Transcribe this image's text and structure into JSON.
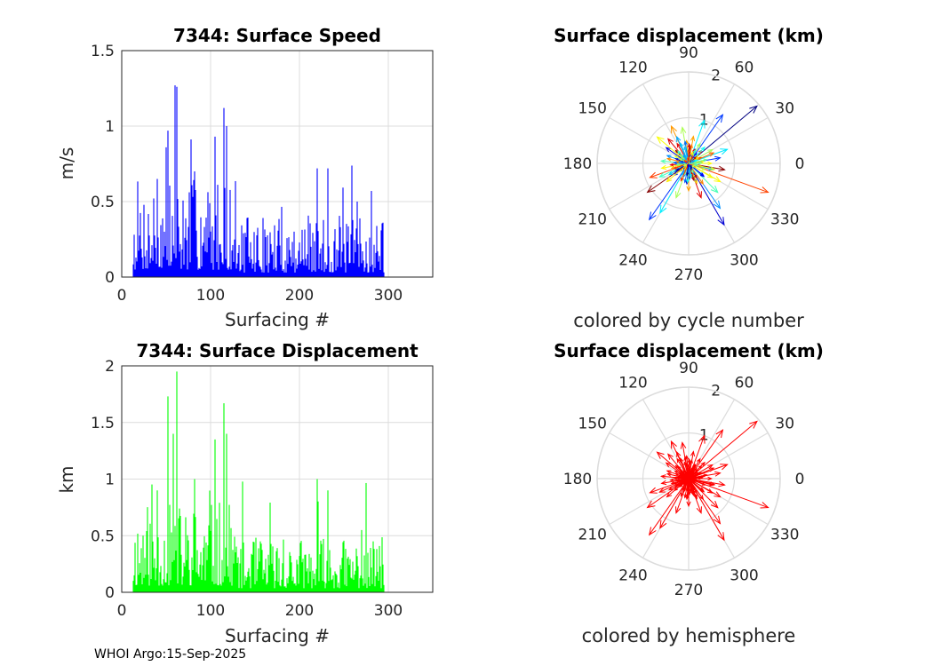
{
  "figure": {
    "footer": "WHOI Argo:15-Sep-2025",
    "colors": {
      "speed": "#0000ff",
      "displacement": "#00ff00",
      "hemisphere": "#ff0000",
      "grid": "#dcdcdc",
      "axis": "#262626"
    }
  },
  "chart_data": [
    {
      "type": "bar",
      "title": "7344: Surface Speed",
      "xlabel": "Surfacing #",
      "ylabel": "m/s",
      "xlim": [
        0,
        350
      ],
      "ylim": [
        0,
        1.5
      ],
      "xticks": [
        0,
        100,
        200,
        300
      ],
      "yticks": [
        0,
        0.5,
        1,
        1.5
      ],
      "grid": true,
      "x_range": [
        13,
        295
      ],
      "highlights": [
        [
          60,
          1.27
        ],
        [
          62,
          1.26
        ],
        [
          115,
          1.12
        ],
        [
          52,
          0.97
        ],
        [
          105,
          0.93
        ],
        [
          118,
          1.0
        ],
        [
          82,
          0.7
        ],
        [
          220,
          0.72
        ],
        [
          232,
          0.72
        ],
        [
          265,
          0.5
        ],
        [
          40,
          0.65
        ]
      ],
      "baseline_level": 0.25,
      "values_note": "dense per-surfacing bars, approx values estimated from image"
    },
    {
      "type": "bar",
      "title": "7344: Surface Displacement",
      "xlabel": "Surfacing #",
      "ylabel": "km",
      "xlim": [
        0,
        350
      ],
      "ylim": [
        0,
        2
      ],
      "xticks": [
        0,
        100,
        200,
        300
      ],
      "yticks": [
        0,
        0.5,
        1,
        1.5,
        2
      ],
      "grid": true,
      "x_range": [
        13,
        295
      ],
      "highlights": [
        [
          62,
          1.95
        ],
        [
          52,
          1.73
        ],
        [
          115,
          1.67
        ],
        [
          105,
          1.35
        ],
        [
          118,
          1.4
        ],
        [
          58,
          1.4
        ],
        [
          82,
          1.0
        ],
        [
          220,
          1.0
        ],
        [
          232,
          0.9
        ],
        [
          40,
          0.9
        ],
        [
          270,
          0.55
        ]
      ],
      "baseline_level": 0.3,
      "values_note": "dense per-surfacing bars, approx values estimated from image"
    },
    {
      "type": "polar-compass",
      "title": "Surface displacement (km)",
      "caption": "colored by cycle number",
      "rmax": 2,
      "rticks": [
        1,
        2
      ],
      "angle_ticks": [
        0,
        30,
        60,
        90,
        120,
        150,
        180,
        210,
        240,
        270,
        300,
        330
      ],
      "coloring": "cycle",
      "arrows": [
        [
          40,
          1.95
        ],
        [
          55,
          1.3
        ],
        [
          70,
          1.0
        ],
        [
          100,
          0.8
        ],
        [
          115,
          0.9
        ],
        [
          130,
          0.7
        ],
        [
          145,
          0.6
        ],
        [
          160,
          0.5
        ],
        [
          175,
          0.6
        ],
        [
          190,
          0.6
        ],
        [
          200,
          0.9
        ],
        [
          215,
          1.1
        ],
        [
          235,
          1.5
        ],
        [
          240,
          1.25
        ],
        [
          250,
          0.8
        ],
        [
          270,
          0.6
        ],
        [
          290,
          0.8
        ],
        [
          300,
          1.55
        ],
        [
          305,
          1.2
        ],
        [
          315,
          0.9
        ],
        [
          330,
          0.8
        ],
        [
          340,
          1.85
        ],
        [
          350,
          0.8
        ],
        [
          10,
          0.7
        ],
        [
          20,
          0.9
        ],
        [
          30,
          0.6
        ],
        [
          80,
          0.6
        ],
        [
          120,
          0.5
        ],
        [
          160,
          0.3
        ],
        [
          250,
          0.3
        ],
        [
          285,
          0.35
        ],
        [
          0,
          0.5
        ],
        [
          45,
          0.4
        ],
        [
          135,
          0.4
        ],
        [
          220,
          0.4
        ],
        [
          320,
          0.4
        ],
        [
          60,
          0.5
        ],
        [
          95,
          0.5
        ],
        [
          185,
          0.4
        ],
        [
          265,
          0.45
        ],
        [
          345,
          0.55
        ],
        [
          205,
          0.7
        ],
        [
          140,
          0.9
        ],
        [
          25,
          0.3
        ]
      ]
    },
    {
      "type": "polar-compass",
      "title": "Surface displacement (km)",
      "caption": "colored by hemisphere",
      "rmax": 2,
      "rticks": [
        1,
        2
      ],
      "angle_ticks": [
        0,
        30,
        60,
        90,
        120,
        150,
        180,
        210,
        240,
        270,
        300,
        330
      ],
      "coloring": "hemisphere",
      "arrows": [
        [
          40,
          1.95
        ],
        [
          55,
          1.3
        ],
        [
          70,
          1.0
        ],
        [
          100,
          0.8
        ],
        [
          115,
          0.9
        ],
        [
          130,
          0.7
        ],
        [
          145,
          0.6
        ],
        [
          160,
          0.5
        ],
        [
          175,
          0.6
        ],
        [
          190,
          0.6
        ],
        [
          200,
          0.9
        ],
        [
          215,
          1.1
        ],
        [
          235,
          1.5
        ],
        [
          240,
          1.25
        ],
        [
          250,
          0.8
        ],
        [
          270,
          0.6
        ],
        [
          290,
          0.8
        ],
        [
          300,
          1.55
        ],
        [
          305,
          1.2
        ],
        [
          315,
          0.9
        ],
        [
          330,
          0.8
        ],
        [
          340,
          1.85
        ],
        [
          350,
          0.8
        ],
        [
          10,
          0.7
        ],
        [
          20,
          0.9
        ],
        [
          30,
          0.6
        ],
        [
          80,
          0.6
        ],
        [
          120,
          0.5
        ],
        [
          160,
          0.3
        ],
        [
          250,
          0.3
        ],
        [
          285,
          0.35
        ],
        [
          0,
          0.5
        ],
        [
          45,
          0.4
        ],
        [
          135,
          0.4
        ],
        [
          220,
          0.4
        ],
        [
          320,
          0.4
        ],
        [
          60,
          0.5
        ],
        [
          95,
          0.5
        ],
        [
          185,
          0.4
        ],
        [
          265,
          0.45
        ],
        [
          345,
          0.55
        ],
        [
          205,
          0.7
        ],
        [
          140,
          0.9
        ],
        [
          25,
          0.3
        ]
      ]
    }
  ]
}
